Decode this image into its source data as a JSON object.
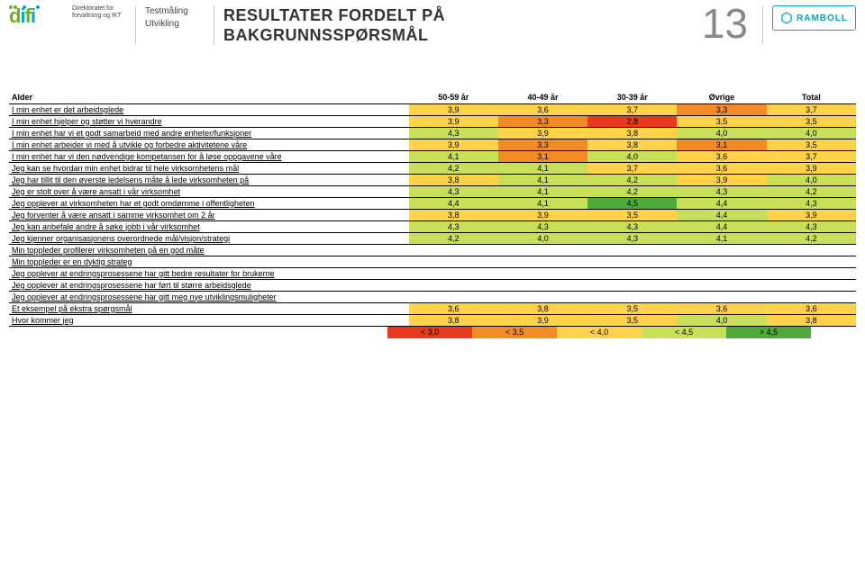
{
  "header": {
    "difi_sub_line1": "Direktoratet for",
    "difi_sub_line2": "forvaltning og IKT",
    "subtitle_line1": "Testmåling",
    "subtitle_line2": "Utvikling",
    "title_line1": "RESULTATER FORDELT PÅ",
    "title_line2": "BAKGRUNNSSPØRSMÅL",
    "page_number": "13",
    "ramboll": "RAMBOLL"
  },
  "table": {
    "group_label": "Alder",
    "columns": [
      "50-59 år",
      "40-49 år",
      "30-39 år",
      "Øvrige",
      "Total"
    ],
    "color_scale": {
      "t0": "#e63b1f",
      "t1": "#f28b26",
      "t2": "#ffd24a",
      "t3": "#c9df5a",
      "t4": "#4faa3c"
    },
    "rows": [
      {
        "label": "I min enhet er det arbeidsglede",
        "v": [
          "3,9",
          "3,6",
          "3,7",
          "3,3",
          "3,7"
        ]
      },
      {
        "label": "I min enhet hjelper og støtter vi hverandre",
        "v": [
          "3,9",
          "3,3",
          "2,8",
          "3,5",
          "3,5"
        ]
      },
      {
        "label": "I min enhet har vi et godt samarbeid med andre enheter/funksjoner",
        "v": [
          "4,3",
          "3,9",
          "3,8",
          "4,0",
          "4,0"
        ]
      },
      {
        "label": "I min enhet arbeider vi med å utvikle og forbedre aktivitetene våre",
        "v": [
          "3,9",
          "3,3",
          "3,8",
          "3,1",
          "3,5"
        ]
      },
      {
        "label": "I min enhet har vi den nødvendige kompetansen for å løse oppgavene våre",
        "v": [
          "4,1",
          "3,1",
          "4,0",
          "3,6",
          "3,7"
        ]
      },
      {
        "label": "Jeg kan se hvordan min enhet bidrar til hele virksomhetens mål",
        "v": [
          "4,2",
          "4,1",
          "3,7",
          "3,6",
          "3,9"
        ]
      },
      {
        "label": "Jeg har tillit til den øverste ledelsens måte å lede virksomheten på",
        "v": [
          "3,8",
          "4,1",
          "4,2",
          "3,9",
          "4,0"
        ]
      },
      {
        "label": "Jeg er stolt over å være ansatt i vår virksomhet",
        "v": [
          "4,3",
          "4,1",
          "4,2",
          "4,3",
          "4,2"
        ]
      },
      {
        "label": "Jeg opplever at virksomheten har et godt omdømme i offentligheten",
        "v": [
          "4,4",
          "4,1",
          "4,5",
          "4,4",
          "4,3"
        ]
      },
      {
        "label": "Jeg forventer å være ansatt i samme virksomhet om 2 år",
        "v": [
          "3,8",
          "3,9",
          "3,5",
          "4,4",
          "3,9"
        ]
      },
      {
        "label": "Jeg kan anbefale andre å søke jobb i vår virksomhet",
        "v": [
          "4,3",
          "4,3",
          "4,3",
          "4,4",
          "4,3"
        ]
      },
      {
        "label": "Jeg kjenner organisasjonens overordnede mål/visjon/strategi",
        "v": [
          "4,2",
          "4,0",
          "4,3",
          "4,1",
          "4,2"
        ]
      },
      {
        "label": "Min toppleder profilerer virksomheten på en god måte",
        "v": [
          "",
          "",
          "",
          "",
          ""
        ]
      },
      {
        "label": "Min toppleder er en dyktig strateg",
        "v": [
          "",
          "",
          "",
          "",
          ""
        ]
      },
      {
        "label": "Jeg opplever at endringsprosessene har gitt bedre resultater for brukerne",
        "v": [
          "",
          "",
          "",
          "",
          ""
        ]
      },
      {
        "label": "Jeg opplever at endringsprosessene har ført til større arbeidsglede",
        "v": [
          "",
          "",
          "",
          "",
          ""
        ]
      },
      {
        "label": "Jeg opplever at endringsprosessene har gitt meg nye utviklingsmuligheter",
        "v": [
          "",
          "",
          "",
          "",
          ""
        ]
      },
      {
        "label": "Et eksempel på ekstra spørgsmål",
        "v": [
          "3,6",
          "3,8",
          "3,5",
          "3,6",
          "3,6"
        ]
      },
      {
        "label": "Hvor kommer jeg",
        "v": [
          "3,8",
          "3,9",
          "3,5",
          "4,0",
          "3,8"
        ]
      }
    ],
    "legend": [
      {
        "label": "< 3,0",
        "color": "#e63b1f"
      },
      {
        "label": "< 3,5",
        "color": "#f28b26"
      },
      {
        "label": "< 4,0",
        "color": "#ffd24a"
      },
      {
        "label": "< 4,5",
        "color": "#c9df5a"
      },
      {
        "label": "> 4,5",
        "color": "#4faa3c"
      }
    ]
  }
}
